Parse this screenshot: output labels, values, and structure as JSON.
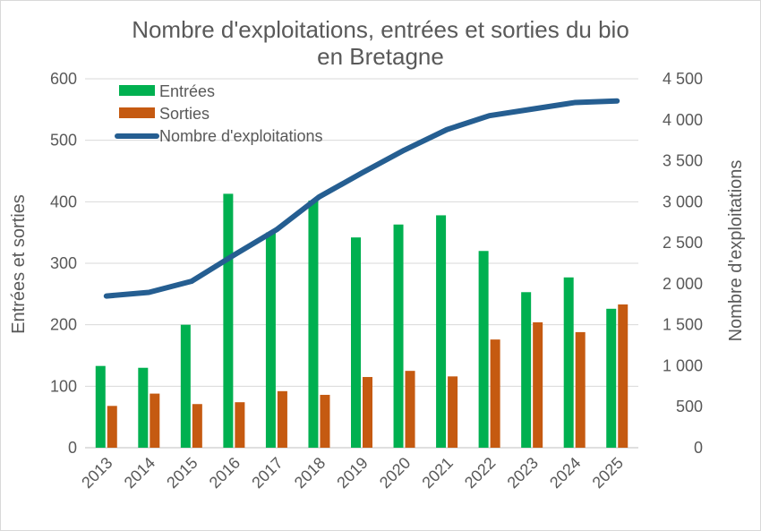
{
  "chart_data": {
    "type": "bar",
    "title": "Nombre d'exploitations, entrées et sorties du bio",
    "title_line2": "en Bretagne",
    "categories": [
      "2013",
      "2014",
      "2015",
      "2016",
      "2017",
      "2018",
      "2019",
      "2020",
      "2021",
      "2022",
      "2023",
      "2024",
      "2025"
    ],
    "series": [
      {
        "name": "Entrées",
        "type": "bar",
        "axis": "left",
        "color": "#00b050",
        "values": [
          133,
          130,
          200,
          413,
          350,
          402,
          342,
          363,
          378,
          320,
          253,
          277,
          226
        ]
      },
      {
        "name": "Sorties",
        "type": "bar",
        "axis": "left",
        "color": "#c55a11",
        "values": [
          68,
          88,
          71,
          74,
          92,
          86,
          115,
          125,
          116,
          176,
          204,
          188,
          233
        ]
      },
      {
        "name": "Nombre d'exploitations",
        "type": "line",
        "axis": "right",
        "color": "#255e91",
        "values": [
          1850,
          1895,
          2030,
          2350,
          2660,
          3060,
          3350,
          3630,
          3880,
          4050,
          4130,
          4210,
          4230
        ]
      }
    ],
    "ylabel": "Entrées et sorties",
    "y2label": "Nombre d'exploitations",
    "ylim": [
      0,
      600
    ],
    "y2lim": [
      0,
      4500
    ],
    "yticks": [
      "0",
      "100",
      "200",
      "300",
      "400",
      "500",
      "600"
    ],
    "y2ticks": [
      "0",
      "500",
      "1 000",
      "1 500",
      "2 000",
      "2 500",
      "3 000",
      "3 500",
      "4 000",
      "4 500"
    ],
    "grid": true,
    "legend_position": "top-left"
  }
}
